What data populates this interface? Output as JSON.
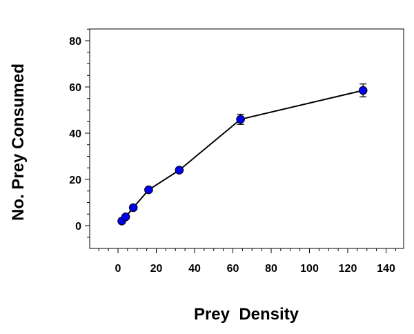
{
  "chart_data": {
    "type": "line",
    "xlabel": "Prey  Density",
    "ylabel": "No. Prey Consumed",
    "xlim": [
      -20,
      150
    ],
    "ylim": [
      -10,
      85
    ],
    "x_ticks": [
      0,
      20,
      40,
      60,
      80,
      100,
      120,
      140
    ],
    "y_ticks": [
      0,
      20,
      40,
      60,
      80
    ],
    "grid": false,
    "series": [
      {
        "x": [
          2,
          4,
          8,
          16,
          32,
          64,
          128
        ],
        "y": [
          2,
          3.8,
          7.8,
          15.5,
          24,
          46,
          58.5
        ],
        "error": [
          0.5,
          0.8,
          0.8,
          0.8,
          1.0,
          2.2,
          2.8
        ],
        "color": "#0000ee",
        "line_color": "#000000"
      }
    ]
  }
}
